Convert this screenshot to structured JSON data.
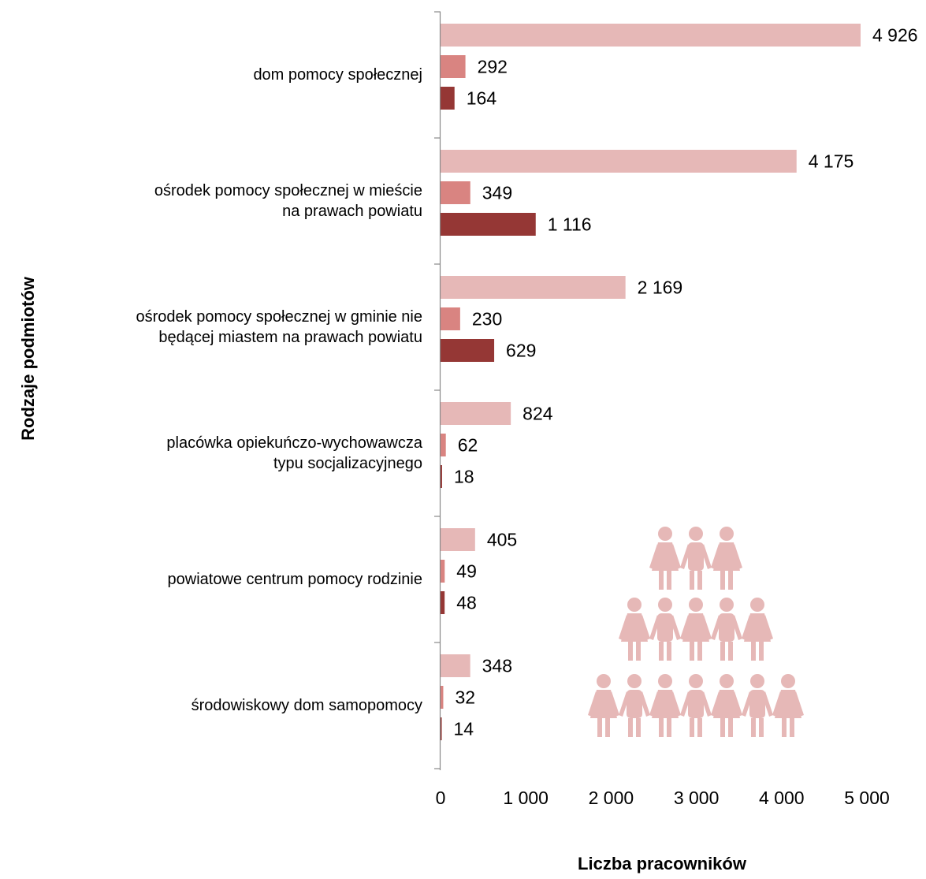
{
  "chart_data": {
    "type": "bar",
    "orientation": "horizontal",
    "title": "",
    "xlabel": "Liczba pracowników",
    "ylabel": "Rodzaje podmiotów",
    "xlim": [
      0,
      5000
    ],
    "x_ticks": [
      "0",
      "1 000",
      "2 000",
      "3 000",
      "4 000",
      "5 000"
    ],
    "grid": false,
    "legend": "none",
    "categories": [
      [
        "dom pomocy społecznej"
      ],
      [
        "ośrodek pomocy społecznej w mieście",
        "na prawach powiatu"
      ],
      [
        "ośrodek pomocy społecznej w gminie nie",
        "będącej miastem na prawach powiatu"
      ],
      [
        "placówka opiekuńczo-wychowawcza",
        "typu socjalizacyjnego"
      ],
      [
        "powiatowe centrum pomocy rodzinie"
      ],
      [
        "środowiskowy dom samopomocy"
      ]
    ],
    "series": [
      {
        "values": [
          4926,
          4175,
          2169,
          824,
          405,
          348
        ],
        "labels": [
          "4 926",
          "4 175",
          "2 169",
          "824",
          "405",
          "348"
        ],
        "color": "#e6b8b7"
      },
      {
        "values": [
          292,
          349,
          230,
          62,
          49,
          32
        ],
        "labels": [
          "292",
          "349",
          "230",
          "62",
          "49",
          "32"
        ],
        "color": "#d98481"
      },
      {
        "values": [
          164,
          1116,
          629,
          18,
          48,
          14
        ],
        "labels": [
          "164",
          "1 116",
          "629",
          "18",
          "48",
          "14"
        ],
        "color": "#953735"
      }
    ]
  },
  "decoration": {
    "icon": "people-pyramid-icon",
    "color": "#e6b8b7",
    "rows": [
      3,
      5,
      7
    ]
  }
}
